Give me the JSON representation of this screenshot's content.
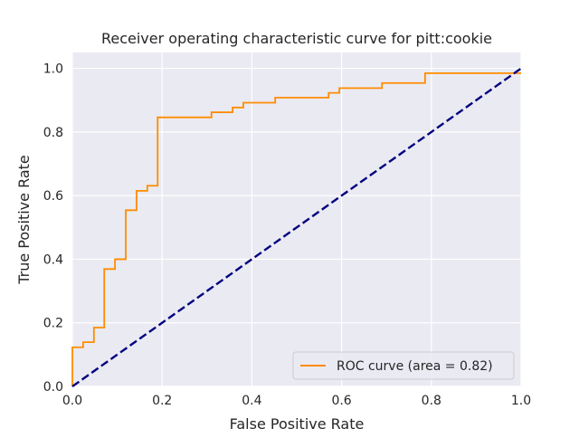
{
  "chart_data": {
    "type": "line",
    "title": "Receiver operating characteristic curve for pitt:cookie",
    "xlabel": "False Positive Rate",
    "ylabel": "True Positive Rate",
    "xlim": [
      0.0,
      1.0
    ],
    "ylim": [
      0.0,
      1.05
    ],
    "xticks": [
      0.0,
      0.2,
      0.4,
      0.6,
      0.8,
      1.0
    ],
    "yticks": [
      0.0,
      0.2,
      0.4,
      0.6,
      0.8,
      1.0
    ],
    "xtick_labels": [
      "0.0",
      "0.2",
      "0.4",
      "0.6",
      "0.8",
      "1.0"
    ],
    "ytick_labels": [
      "0.0",
      "0.2",
      "0.4",
      "0.6",
      "0.8",
      "1.0"
    ],
    "grid": true,
    "legend_position": "lower-right",
    "series": [
      {
        "name": "ROC curve (area = 0.82)",
        "color": "#ff8c00",
        "style": "solid",
        "x": [
          0.0,
          0.0,
          0.024,
          0.024,
          0.048,
          0.048,
          0.071,
          0.071,
          0.095,
          0.095,
          0.119,
          0.119,
          0.143,
          0.143,
          0.167,
          0.167,
          0.19,
          0.19,
          0.31,
          0.31,
          0.357,
          0.357,
          0.381,
          0.381,
          0.452,
          0.452,
          0.571,
          0.571,
          0.595,
          0.595,
          0.69,
          0.69,
          0.786,
          0.786,
          1.0
        ],
        "y": [
          0.0,
          0.123,
          0.123,
          0.139,
          0.139,
          0.185,
          0.185,
          0.369,
          0.369,
          0.4,
          0.4,
          0.554,
          0.554,
          0.615,
          0.615,
          0.631,
          0.631,
          0.846,
          0.846,
          0.862,
          0.862,
          0.877,
          0.877,
          0.892,
          0.892,
          0.908,
          0.908,
          0.923,
          0.923,
          0.938,
          0.938,
          0.954,
          0.954,
          0.985,
          0.985
        ]
      },
      {
        "name": "",
        "color": "#000080",
        "style": "dashed",
        "x": [
          0.0,
          1.0
        ],
        "y": [
          0.0,
          1.0
        ]
      }
    ]
  }
}
